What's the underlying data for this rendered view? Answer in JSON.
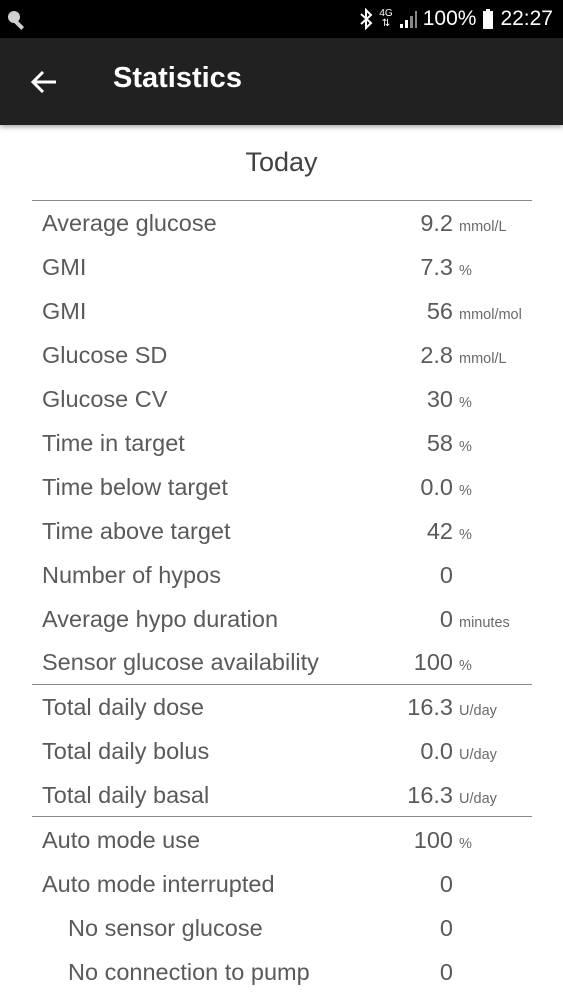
{
  "status_bar": {
    "network": "4G",
    "battery": "100%",
    "time": "22:27",
    "icons": [
      "key-icon",
      "bluetooth-icon",
      "network-4g-icon",
      "signal-icon",
      "battery-icon"
    ]
  },
  "app_bar": {
    "title": "Statistics",
    "back_icon": "arrow-back-icon"
  },
  "section": {
    "title": "Today"
  },
  "stats": [
    {
      "label": "Average glucose",
      "value": "9.2",
      "unit": "mmol/L"
    },
    {
      "label": "GMI",
      "value": "7.3",
      "unit": "%"
    },
    {
      "label": "GMI",
      "value": "56",
      "unit": "mmol/mol"
    },
    {
      "label": "Glucose SD",
      "value": "2.8",
      "unit": "mmol/L"
    },
    {
      "label": "Glucose CV",
      "value": "30",
      "unit": "%"
    },
    {
      "label": "Time in target",
      "value": "58",
      "unit": "%"
    },
    {
      "label": "Time below target",
      "value": "0.0",
      "unit": "%"
    },
    {
      "label": "Time above target",
      "value": "42",
      "unit": "%"
    },
    {
      "label": "Number of hypos",
      "value": "0",
      "unit": ""
    },
    {
      "label": "Average hypo duration",
      "value": "0",
      "unit": "minutes"
    },
    {
      "label": "Sensor glucose availability",
      "value": "100",
      "unit": "%"
    }
  ],
  "insulin": [
    {
      "label": "Total daily dose",
      "value": "16.3",
      "unit": "U/day"
    },
    {
      "label": "Total daily bolus",
      "value": "0.0",
      "unit": "U/day"
    },
    {
      "label": "Total daily basal",
      "value": "16.3",
      "unit": "U/day"
    }
  ],
  "auto_mode": [
    {
      "label": "Auto mode use",
      "value": "100",
      "unit": "%"
    },
    {
      "label": "Auto mode interrupted",
      "value": "0",
      "unit": ""
    },
    {
      "label": "No sensor glucose",
      "value": "0",
      "unit": ""
    },
    {
      "label": "No connection to pump",
      "value": "0",
      "unit": ""
    }
  ],
  "colors": {
    "status_bar_bg": "#000000",
    "app_bar_bg": "#212121",
    "text": "#5a5a5a",
    "divider": "#8a8a8a"
  }
}
